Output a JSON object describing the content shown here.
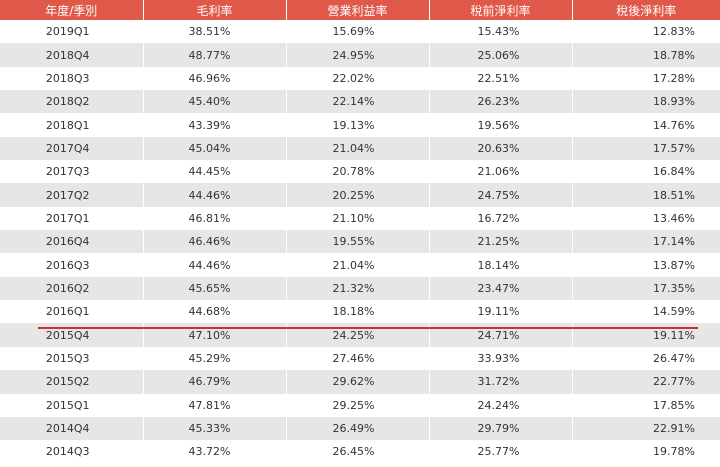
{
  "table": {
    "headers": [
      "年度/季別",
      "毛利率",
      "營業利益率",
      "稅前淨利率",
      "稅後淨利率"
    ],
    "rows": [
      [
        "2019Q1",
        "38.51%",
        "15.69%",
        "15.43%",
        "12.83%"
      ],
      [
        "2018Q4",
        "48.77%",
        "24.95%",
        "25.06%",
        "18.78%"
      ],
      [
        "2018Q3",
        "46.96%",
        "22.02%",
        "22.51%",
        "17.28%"
      ],
      [
        "2018Q2",
        "45.40%",
        "22.14%",
        "26.23%",
        "18.93%"
      ],
      [
        "2018Q1",
        "43.39%",
        "19.13%",
        "19.56%",
        "14.76%"
      ],
      [
        "2017Q4",
        "45.04%",
        "21.04%",
        "20.63%",
        "17.57%"
      ],
      [
        "2017Q3",
        "44.45%",
        "20.78%",
        "21.06%",
        "16.84%"
      ],
      [
        "2017Q2",
        "44.46%",
        "20.25%",
        "24.75%",
        "18.51%"
      ],
      [
        "2017Q1",
        "46.81%",
        "21.10%",
        "16.72%",
        "13.46%"
      ],
      [
        "2016Q4",
        "46.46%",
        "19.55%",
        "21.25%",
        "17.14%"
      ],
      [
        "2016Q3",
        "44.46%",
        "21.04%",
        "18.14%",
        "13.87%"
      ],
      [
        "2016Q2",
        "45.65%",
        "21.32%",
        "23.47%",
        "17.35%"
      ],
      [
        "2016Q1",
        "44.68%",
        "18.18%",
        "19.11%",
        "14.59%"
      ],
      [
        "2015Q4",
        "47.10%",
        "24.25%",
        "24.71%",
        "19.11%"
      ],
      [
        "2015Q3",
        "45.29%",
        "27.46%",
        "33.93%",
        "26.47%"
      ],
      [
        "2015Q2",
        "46.79%",
        "29.62%",
        "31.72%",
        "22.77%"
      ],
      [
        "2015Q1",
        "47.81%",
        "29.25%",
        "24.24%",
        "17.85%"
      ],
      [
        "2014Q4",
        "45.33%",
        "26.49%",
        "29.79%",
        "22.91%"
      ],
      [
        "2014Q3",
        "43.72%",
        "26.45%",
        "25.77%",
        "19.78%"
      ]
    ]
  },
  "colors": {
    "header_bg": "#e0584a",
    "header_text": "#ffffff",
    "stripe": "#e6e6e6",
    "highlight_line": "#d0303c"
  }
}
